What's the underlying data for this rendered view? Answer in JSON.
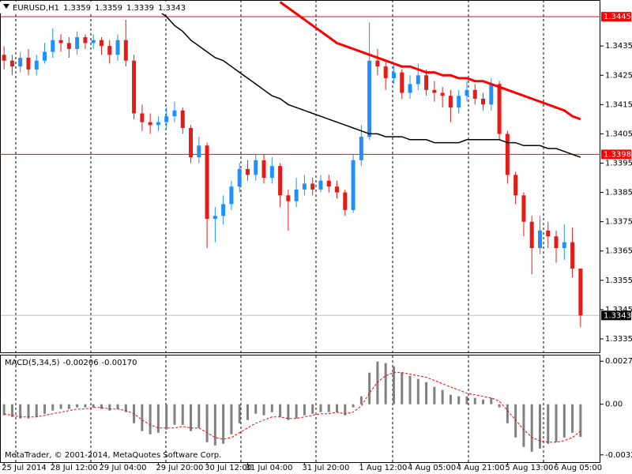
{
  "chart_data": [
    {
      "type": "candlestick",
      "title": "EURUSD,H1",
      "up_color": "#1e90ff",
      "down_color": "#e41b17",
      "categories": [
        "25 Jul 2014",
        null,
        null,
        null,
        null,
        null,
        "28 Jul 12:00",
        null,
        null,
        null,
        null,
        null,
        "29 Jul 04:00",
        null,
        null,
        null,
        null,
        null,
        null,
        "29 Jul 20:00",
        null,
        null,
        null,
        null,
        null,
        "30 Jul 12:00",
        null,
        null,
        null,
        null,
        "31 Jul 04:00",
        null,
        null,
        null,
        null,
        null,
        null,
        "31 Jul 20:00",
        null,
        null,
        null,
        null,
        null,
        null,
        "1 Aug 12:00",
        null,
        null,
        null,
        null,
        null,
        "4 Aug 05:00",
        null,
        null,
        null,
        null,
        null,
        "4 Aug 21:00",
        null,
        null,
        null,
        null,
        null,
        "5 Aug 13:00",
        null,
        null,
        null,
        null,
        null,
        "6 Aug 05:00",
        null,
        null,
        null
      ],
      "open": [
        1.3432,
        1.343,
        1.3428,
        1.3431,
        1.3427,
        1.343,
        1.3433,
        1.3437,
        1.3436,
        1.3434,
        1.3438,
        1.3436,
        1.3437,
        1.3435,
        1.3432,
        1.3437,
        1.343,
        1.3412,
        1.3409,
        1.3408,
        1.3409,
        1.3411,
        1.3413,
        1.3407,
        1.3397,
        1.3401,
        1.3376,
        1.3377,
        1.3381,
        1.3387,
        1.3393,
        1.3391,
        1.3396,
        1.339,
        1.3394,
        1.3384,
        1.3382,
        1.3386,
        1.3388,
        1.3386,
        1.3389,
        1.3387,
        1.3385,
        1.3379,
        1.3396,
        1.3404,
        1.343,
        1.3428,
        1.3424,
        1.3426,
        1.3419,
        1.3422,
        1.3425,
        1.342,
        1.3419,
        1.3418,
        1.3414,
        1.3418,
        1.342,
        1.3417,
        1.3415,
        1.3422,
        1.3405,
        1.3391,
        1.3384,
        1.3375,
        1.3366,
        1.3372,
        1.337,
        1.3366,
        1.3368,
        1.3359
      ],
      "high": [
        1.3435,
        1.3432,
        1.3433,
        1.3434,
        1.3432,
        1.3436,
        1.3441,
        1.3439,
        1.3438,
        1.344,
        1.3439,
        1.3439,
        1.3438,
        1.3437,
        1.3439,
        1.3444,
        1.3432,
        1.3415,
        1.3412,
        1.3411,
        1.3414,
        1.3416,
        1.3414,
        1.3408,
        1.3404,
        1.3402,
        1.338,
        1.3384,
        1.3389,
        1.3395,
        1.3396,
        1.3398,
        1.3398,
        1.3397,
        1.3395,
        1.3386,
        1.339,
        1.3391,
        1.339,
        1.3391,
        1.3391,
        1.3389,
        1.3386,
        1.3398,
        1.3408,
        1.3443,
        1.3434,
        1.343,
        1.3429,
        1.3427,
        1.3425,
        1.3429,
        1.3427,
        1.3423,
        1.3421,
        1.342,
        1.342,
        1.3423,
        1.3422,
        1.3419,
        1.3424,
        1.3423,
        1.3406,
        1.3392,
        1.3385,
        1.3377,
        1.3377,
        1.3375,
        1.3372,
        1.3374,
        1.3373,
        1.3359
      ],
      "low": [
        1.3427,
        1.3425,
        1.3426,
        1.3425,
        1.3425,
        1.3429,
        1.3431,
        1.3433,
        1.3431,
        1.3432,
        1.3434,
        1.3434,
        1.3432,
        1.3429,
        1.343,
        1.3428,
        1.341,
        1.3406,
        1.3405,
        1.3406,
        1.3407,
        1.3409,
        1.3405,
        1.3395,
        1.3395,
        1.3366,
        1.3368,
        1.3374,
        1.3379,
        1.3385,
        1.3389,
        1.3389,
        1.3388,
        1.3388,
        1.338,
        1.3372,
        1.338,
        1.3384,
        1.3384,
        1.3385,
        1.3385,
        1.3383,
        1.3377,
        1.3378,
        1.3394,
        1.3403,
        1.3425,
        1.342,
        1.3422,
        1.3417,
        1.3417,
        1.342,
        1.3418,
        1.3416,
        1.3414,
        1.3409,
        1.3412,
        1.3416,
        1.3415,
        1.3413,
        1.3413,
        1.3403,
        1.3388,
        1.3381,
        1.337,
        1.3357,
        1.3364,
        1.3366,
        1.3361,
        1.3362,
        1.3356,
        1.3339
      ],
      "close": [
        1.343,
        1.3428,
        1.3431,
        1.3427,
        1.343,
        1.3433,
        1.3437,
        1.3436,
        1.3434,
        1.3438,
        1.3436,
        1.3437,
        1.3435,
        1.3432,
        1.3437,
        1.343,
        1.3412,
        1.3409,
        1.3408,
        1.3409,
        1.3411,
        1.3413,
        1.3407,
        1.3397,
        1.3401,
        1.3376,
        1.3377,
        1.3381,
        1.3387,
        1.3393,
        1.3391,
        1.3396,
        1.339,
        1.3394,
        1.3384,
        1.3382,
        1.3386,
        1.3388,
        1.3386,
        1.3389,
        1.3387,
        1.3385,
        1.3379,
        1.3396,
        1.3404,
        1.343,
        1.3428,
        1.3424,
        1.3426,
        1.3419,
        1.3422,
        1.3425,
        1.342,
        1.3419,
        1.3418,
        1.3414,
        1.3418,
        1.342,
        1.3417,
        1.3415,
        1.3422,
        1.3405,
        1.3391,
        1.3384,
        1.3375,
        1.3366,
        1.3372,
        1.337,
        1.3366,
        1.3368,
        1.3359,
        1.3343
      ],
      "series": [
        {
          "color": "#ff0000",
          "width": 3,
          "values": [
            null,
            null,
            null,
            null,
            null,
            null,
            null,
            null,
            null,
            null,
            null,
            null,
            null,
            null,
            null,
            null,
            null,
            null,
            null,
            null,
            null,
            null,
            null,
            null,
            null,
            null,
            null,
            null,
            null,
            null,
            null,
            null,
            null,
            null,
            1.345,
            1.3448,
            1.3446,
            1.3444,
            1.3442,
            1.344,
            1.3438,
            1.3436,
            1.3435,
            1.3434,
            1.3433,
            1.3432,
            1.3431,
            1.343,
            1.3429,
            1.3428,
            1.3428,
            1.3427,
            1.3426,
            1.3426,
            1.3425,
            1.3425,
            1.3424,
            1.3424,
            1.3423,
            1.3423,
            1.3422,
            1.3421,
            1.342,
            1.3419,
            1.3418,
            1.3417,
            1.3416,
            1.3415,
            1.3414,
            1.3413,
            1.3411,
            1.341
          ]
        },
        {
          "color": "#000000",
          "width": 1.5,
          "values": [
            null,
            null,
            null,
            null,
            null,
            null,
            null,
            null,
            null,
            null,
            null,
            null,
            null,
            null,
            null,
            null,
            null,
            null,
            1.345,
            1.3447,
            1.3445,
            1.3442,
            1.344,
            1.3437,
            1.3435,
            1.3433,
            1.3431,
            1.343,
            1.3428,
            1.3426,
            1.3424,
            1.3422,
            1.342,
            1.3418,
            1.3417,
            1.3415,
            1.3414,
            1.3413,
            1.3412,
            1.3411,
            1.341,
            1.3409,
            1.3408,
            1.3407,
            1.3406,
            1.3405,
            1.3405,
            1.3404,
            1.3404,
            1.3404,
            1.3403,
            1.3403,
            1.3403,
            1.3402,
            1.3402,
            1.3402,
            1.3402,
            1.3403,
            1.3403,
            1.3403,
            1.3403,
            1.3403,
            1.3402,
            1.3402,
            1.3401,
            1.3401,
            1.3401,
            1.34,
            1.34,
            1.3399,
            1.3398,
            1.3397
          ]
        }
      ],
      "price_lines": [
        {
          "value": 1.3445,
          "color": "#ff0000",
          "box_color": "#ff0000"
        },
        {
          "value": 1.3398,
          "color": "#ff0000",
          "box_color": "#ff0000"
        },
        {
          "value": 1.3343,
          "color": "#c0c0c0",
          "box_color": "#000000"
        }
      ],
      "ylim": [
        1.33304,
        1.34507
      ],
      "yticks": [
        1.3335,
        1.3345,
        1.3355,
        1.3365,
        1.3375,
        1.3385,
        1.3395,
        1.3405,
        1.3415,
        1.3425,
        1.3435
      ]
    },
    {
      "type": "macd",
      "title": "MACD(5,34,5)",
      "annotation": "MetaTrader, © 2001-2014, MetaQuotes Software Corp.",
      "histogram_color": "#808080",
      "signal_color": "#ff0000",
      "histogram": [
        -0.0007,
        -0.0008,
        -0.0009,
        -0.0009,
        -0.0008,
        -0.0006,
        -0.0004,
        -0.0003,
        -0.0003,
        -0.0002,
        -0.0002,
        -0.0002,
        -0.0003,
        -0.0004,
        -0.0003,
        -0.0005,
        -0.0012,
        -0.0017,
        -0.0019,
        -0.0018,
        -0.0016,
        -0.0013,
        -0.0013,
        -0.0017,
        -0.0015,
        -0.0024,
        -0.0026,
        -0.0025,
        -0.0019,
        -0.0012,
        -0.001,
        -0.0006,
        -0.0007,
        -0.0005,
        -0.0008,
        -0.001,
        -0.0009,
        -0.0007,
        -0.0006,
        -0.0005,
        -0.0005,
        -0.0005,
        -0.0007,
        -0.0002,
        0.0005,
        0.002,
        0.0027,
        0.0026,
        0.0024,
        0.002,
        0.0018,
        0.0016,
        0.0014,
        0.0011,
        0.0009,
        0.0006,
        0.0005,
        0.0005,
        0.0004,
        0.0003,
        0.0004,
        -0.0002,
        -0.0012,
        -0.0021,
        -0.0027,
        -0.003,
        -0.0028,
        -0.0025,
        -0.0024,
        -0.0021,
        -0.0018,
        -0.00206
      ],
      "signal": [
        -0.0006,
        -0.0007,
        -0.0008,
        -0.0008,
        -0.0008,
        -0.0007,
        -0.0006,
        -0.0005,
        -0.0004,
        -0.0003,
        -0.0003,
        -0.0002,
        -0.0002,
        -0.0003,
        -0.0003,
        -0.0004,
        -0.0006,
        -0.001,
        -0.0013,
        -0.0015,
        -0.0015,
        -0.0015,
        -0.0014,
        -0.0015,
        -0.0015,
        -0.0018,
        -0.0021,
        -0.0022,
        -0.0021,
        -0.0018,
        -0.0015,
        -0.0012,
        -0.001,
        -0.0008,
        -0.0008,
        -0.0009,
        -0.0009,
        -0.0008,
        -0.0007,
        -0.0006,
        -0.0006,
        -0.0005,
        -0.0006,
        -0.0005,
        -0.0001,
        0.0007,
        0.0014,
        0.0018,
        0.002,
        0.002,
        0.0019,
        0.0018,
        0.0017,
        0.0015,
        0.0013,
        0.0011,
        0.0009,
        0.0007,
        0.0006,
        0.0005,
        0.0004,
        0.0002,
        -0.0004,
        -0.001,
        -0.0016,
        -0.0021,
        -0.0023,
        -0.0024,
        -0.0024,
        -0.0023,
        -0.0021,
        -0.0017
      ],
      "signal_value_labels": [
        null,
        null,
        null,
        null,
        null,
        null,
        null,
        null,
        null,
        null,
        null,
        null,
        null,
        null,
        null,
        null,
        null,
        null,
        null,
        null,
        null,
        null,
        null,
        null,
        null,
        null,
        null,
        null,
        null,
        null,
        null,
        null,
        null,
        null,
        null,
        null,
        null,
        null,
        null,
        null,
        null,
        null,
        null,
        null,
        null,
        null,
        null,
        null,
        null,
        null,
        null,
        null,
        null,
        null,
        null,
        null,
        null,
        null,
        null,
        null,
        null,
        null,
        null,
        null,
        null,
        null,
        null,
        null,
        null,
        null,
        null,
        "-0.00170"
      ],
      "ylim": [
        -0.00371,
        0.00313
      ],
      "yticks": [
        0.00272,
        {
          "value": 0,
          "label": "0.00"
        },
        -0.0032
      ]
    }
  ]
}
